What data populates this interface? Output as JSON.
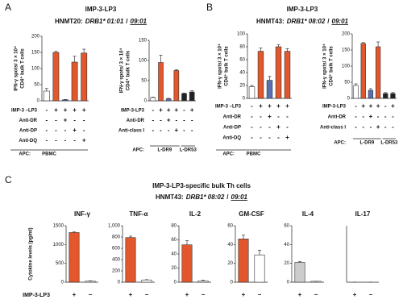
{
  "panels": [
    {
      "label": "A",
      "title": "IMP-3-LP3",
      "subtitle": {
        "sample": "HNMT20:",
        "allele1": "DRB1* 01:01",
        "separator": "/",
        "allele2": "09:01"
      }
    },
    {
      "label": "B",
      "title": "IMP-3-LP3",
      "subtitle": {
        "sample": "HNMT43:",
        "allele1": "DRB1* 08:02",
        "separator": "/",
        "allele2": "09:01"
      }
    },
    {
      "label": "C",
      "title": "IMP-3-LP3-specific bulk Th cells",
      "subtitle": {
        "sample": "HNMT43:",
        "allele1": "DRB1* 08:02",
        "separator": "/",
        "allele2": "09:01"
      }
    }
  ],
  "chart_data": [
    {
      "type": "bar",
      "ylabel": [
        "IFN-γ spots/ 3 × 10⁴",
        "CD4⁺ bulk T cells"
      ],
      "ylim": [
        0,
        200
      ],
      "yticks": [
        0,
        50,
        100,
        150,
        200
      ],
      "values": [
        30,
        150,
        3,
        120,
        148
      ],
      "errors": [
        8,
        3,
        1,
        18,
        12
      ],
      "colors": [
        "#ffffff",
        "#e2572b",
        "#5b6fb3",
        "#e2572b",
        "#e2572b"
      ],
      "conditions": [
        {
          "name": "IMP-3 –LP3",
          "signs": [
            "-",
            "+",
            "+",
            "+",
            "+"
          ]
        },
        {
          "name": "Anti-DR",
          "signs": [
            "-",
            "-",
            "+",
            "-",
            "-"
          ]
        },
        {
          "name": "Anti-DP",
          "signs": [
            "-",
            "-",
            "-",
            "+",
            "-"
          ]
        },
        {
          "name": "Anti-DQ",
          "signs": [
            "-",
            "-",
            "-",
            "-",
            "+"
          ]
        }
      ],
      "apc_label": "APC:",
      "apc_groups": [
        {
          "label": "PBMC",
          "bars": 5
        }
      ]
    },
    {
      "type": "bar",
      "ylabel": [
        "IFN-γ spots/ 3 × 10⁴",
        "CD4⁺ bulk T cells"
      ],
      "ylim": [
        0,
        150
      ],
      "yticks": [
        0,
        50,
        100,
        150
      ],
      "values": [
        8,
        95,
        5,
        75,
        18,
        22
      ],
      "errors": [
        1,
        18,
        1,
        2,
        1,
        3
      ],
      "colors": [
        "#ffffff",
        "#e2572b",
        "#5b6fb3",
        "#e2572b",
        "#222222",
        "#222222"
      ],
      "conditions": [
        {
          "name": "IMP-3-LP3",
          "signs": [
            "-",
            "+",
            "+",
            "+",
            "-",
            "+"
          ]
        },
        {
          "name": "Anti-DR",
          "signs": [
            "-",
            "-",
            "+",
            "-",
            "-",
            "-"
          ]
        },
        {
          "name": "Anti-class I",
          "signs": [
            "-",
            "-",
            "-",
            "+",
            "-",
            "-"
          ]
        }
      ],
      "apc_label": "APC:",
      "apc_groups": [
        {
          "label": "L-DR9",
          "bars": 4
        },
        {
          "label": "L-DR53",
          "bars": 2
        }
      ]
    },
    {
      "type": "bar",
      "ylabel": [
        "IFN-γ spots/ 3 × 10⁴",
        "CD4⁺ bulk T cells"
      ],
      "ylim": [
        0,
        100
      ],
      "yticks": [
        0,
        20,
        40,
        60,
        80,
        100
      ],
      "values": [
        18,
        73,
        28,
        80,
        73
      ],
      "errors": [
        2,
        5,
        6,
        3,
        4
      ],
      "colors": [
        "#ffffff",
        "#e2572b",
        "#5b6fb3",
        "#e2572b",
        "#e2572b"
      ],
      "conditions": [
        {
          "name": "IMP-3 –LP3",
          "signs": [
            "-",
            "+",
            "+",
            "+",
            "+"
          ]
        },
        {
          "name": "Anti-DR",
          "signs": [
            "-",
            "-",
            "+",
            "-",
            "-"
          ]
        },
        {
          "name": "Anti-DP",
          "signs": [
            "-",
            "-",
            "-",
            "+",
            "-"
          ]
        },
        {
          "name": "Anti-DQ",
          "signs": [
            "-",
            "-",
            "-",
            "-",
            "+"
          ]
        }
      ],
      "apc_label": "APC:",
      "apc_groups": [
        {
          "label": "PBMC",
          "bars": 5
        }
      ]
    },
    {
      "type": "bar",
      "ylabel": [
        "IFN-γ spots/ 3 × 10⁴",
        "CD4⁺ bulk T cells"
      ],
      "ylim": [
        0,
        200
      ],
      "yticks": [
        0,
        50,
        100,
        150,
        200
      ],
      "values": [
        40,
        170,
        25,
        160,
        15,
        15
      ],
      "errors": [
        5,
        3,
        5,
        15,
        3,
        3
      ],
      "colors": [
        "#ffffff",
        "#e2572b",
        "#5b6fb3",
        "#e2572b",
        "#222222",
        "#222222"
      ],
      "conditions": [
        {
          "name": "IMP-3-LP3",
          "signs": [
            "-",
            "+",
            "+",
            "+",
            "-",
            "+"
          ]
        },
        {
          "name": "Anti-DR",
          "signs": [
            "-",
            "-",
            "+",
            "-",
            "-",
            "-"
          ]
        },
        {
          "name": "Anti-class I",
          "signs": [
            "-",
            "-",
            "-",
            "+",
            "-",
            "-"
          ]
        }
      ],
      "apc_label": "APC:",
      "apc_groups": [
        {
          "label": "L-DR9",
          "bars": 4
        },
        {
          "label": "L-DR53",
          "bars": 2
        }
      ]
    },
    {
      "type": "bar",
      "title": "INF-γ",
      "ylabel": [
        "Cytokine levels (pg/ml)"
      ],
      "row_label": "IMP-3-LP3",
      "ylim": [
        0,
        1500
      ],
      "yticks": [
        0,
        500,
        1000,
        1500
      ],
      "categories": [
        "+",
        "−"
      ],
      "values": [
        1320,
        30
      ],
      "errors": [
        15,
        8
      ],
      "colors": [
        "#e2572b",
        "#ffffff"
      ]
    },
    {
      "type": "bar",
      "title": "TNF-α",
      "ylim": [
        0,
        1000
      ],
      "yticks": [
        0,
        200,
        400,
        600,
        800,
        {
          "value": 1000,
          "label": "1,000"
        }
      ],
      "categories": [
        "+",
        "−"
      ],
      "values": [
        790,
        40
      ],
      "errors": [
        25,
        5
      ],
      "colors": [
        "#e2572b",
        "#ffffff"
      ]
    },
    {
      "type": "bar",
      "title": "IL-2",
      "ylim": [
        0,
        80
      ],
      "yticks": [
        0,
        20,
        40,
        60,
        80
      ],
      "categories": [
        "+",
        "−"
      ],
      "values": [
        53,
        2
      ],
      "errors": [
        6,
        1
      ],
      "colors": [
        "#e2572b",
        "#ffffff"
      ]
    },
    {
      "type": "bar",
      "title": "GM-CSF",
      "ylim": [
        0,
        60
      ],
      "yticks": [
        0,
        20,
        40,
        60
      ],
      "categories": [
        "+",
        "−"
      ],
      "values": [
        46,
        29
      ],
      "errors": [
        4,
        5
      ],
      "colors": [
        "#e2572b",
        "#ffffff"
      ]
    },
    {
      "type": "bar",
      "title": "IL-4",
      "ylim": [
        0,
        60
      ],
      "yticks": [
        0,
        20,
        40,
        60
      ],
      "categories": [
        "+",
        "−"
      ],
      "values": [
        21,
        1
      ],
      "errors": [
        1,
        0
      ],
      "colors": [
        "#cccccc",
        "#ffffff"
      ]
    },
    {
      "type": "bar",
      "title": "IL-17",
      "ylim": [
        0,
        60
      ],
      "categories": [
        "+",
        "−"
      ],
      "values": [
        0,
        0
      ],
      "errors": [
        0,
        0
      ],
      "colors": [
        "#cccccc",
        "#ffffff"
      ]
    }
  ]
}
